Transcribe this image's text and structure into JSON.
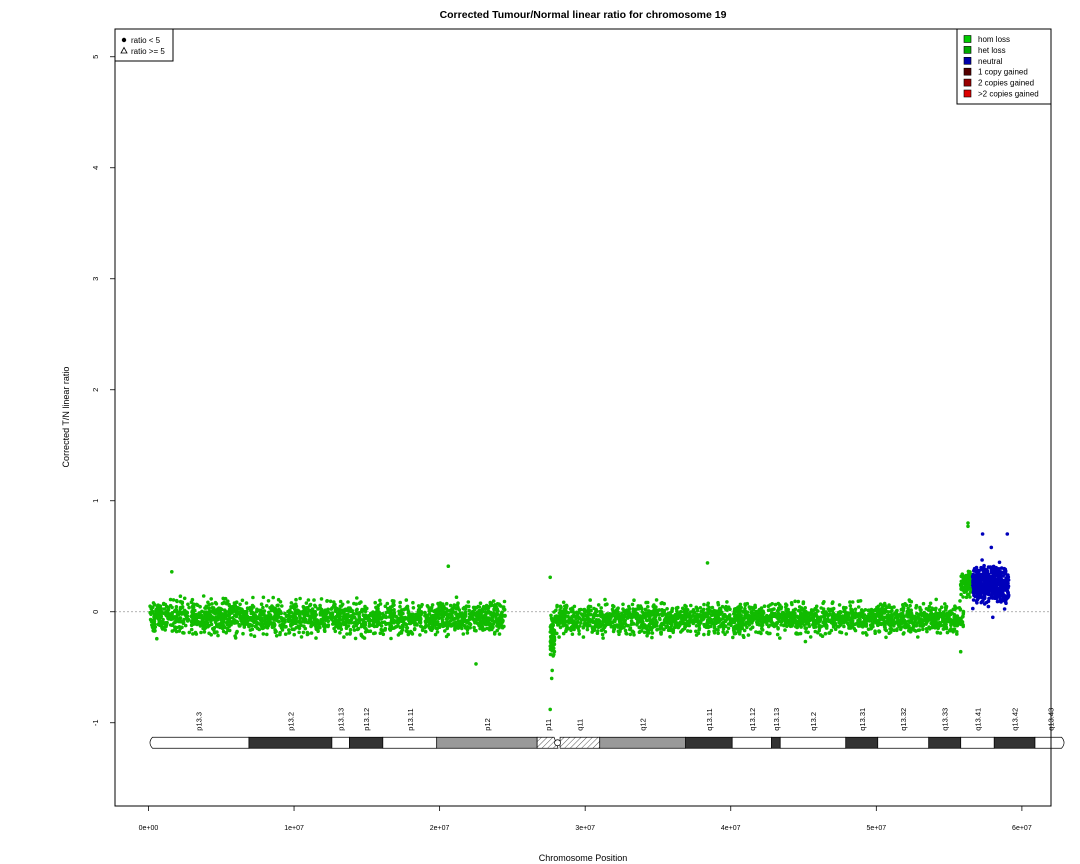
{
  "chart_data": {
    "type": "scatter",
    "title": "Corrected Tumour/Normal linear ratio for chromosome  19",
    "xlabel": "Chromosome Position",
    "ylabel": "Corrected T/N linear ratio",
    "xlim": [
      -2300000,
      62000000
    ],
    "ylim": [
      -1.75,
      5.25
    ],
    "x_ticks": [
      0,
      10000000,
      20000000,
      30000000,
      40000000,
      50000000,
      60000000
    ],
    "x_tick_labels": [
      "0e+00",
      "1e+07",
      "2e+07",
      "3e+07",
      "4e+07",
      "5e+07",
      "6e+07"
    ],
    "y_ticks": [
      -1,
      0,
      1,
      2,
      3,
      4,
      5
    ],
    "y_tick_labels": [
      "-1",
      "0",
      "1",
      "2",
      "3",
      "4",
      "5"
    ],
    "reference_line_y": 0,
    "shape_legend": {
      "position": "top-left",
      "items": [
        {
          "label": "ratio < 5",
          "marker": "filled-circle"
        },
        {
          "label": "ratio >= 5",
          "marker": "open-triangle"
        }
      ]
    },
    "color_legend": {
      "position": "top-right",
      "items": [
        {
          "label": "hom loss",
          "color": "#00cc00"
        },
        {
          "label": "het loss",
          "color": "#00aa00"
        },
        {
          "label": "neutral",
          "color": "#0000aa"
        },
        {
          "label": "1 copy gained",
          "color": "#550000"
        },
        {
          "label": "2 copies gained",
          "color": "#990000"
        },
        {
          "label": ">2 copies gained",
          "color": "#dd0000"
        }
      ]
    },
    "series": [
      {
        "name": "het loss",
        "color": "#11bb00",
        "segments": [
          {
            "x_start": 100000,
            "x_end": 24500000,
            "mean": -0.05,
            "spread": 0.13,
            "n": 1900
          },
          {
            "x_start": 27600000,
            "x_end": 27900000,
            "mean": -0.25,
            "spread": 0.18,
            "n": 80
          },
          {
            "x_start": 27900000,
            "x_end": 56000000,
            "mean": -0.06,
            "spread": 0.12,
            "n": 2200
          },
          {
            "x_start": 55800000,
            "x_end": 56600000,
            "mean": 0.25,
            "spread": 0.1,
            "n": 90
          }
        ],
        "outliers": [
          {
            "x": 1600000,
            "y": 0.36
          },
          {
            "x": 20600000,
            "y": 0.41
          },
          {
            "x": 22500000,
            "y": -0.47
          },
          {
            "x": 27600000,
            "y": 0.31
          },
          {
            "x": 27600000,
            "y": -0.88
          },
          {
            "x": 27700000,
            "y": -0.6
          },
          {
            "x": 38400000,
            "y": 0.44
          },
          {
            "x": 56300000,
            "y": 0.8
          },
          {
            "x": 56300000,
            "y": 0.77
          },
          {
            "x": 55800000,
            "y": -0.36
          }
        ]
      },
      {
        "name": "neutral",
        "color": "#0000bb",
        "segments": [
          {
            "x_start": 56600000,
            "x_end": 59100000,
            "mean": 0.25,
            "spread": 0.14,
            "n": 520
          }
        ],
        "outliers": [
          {
            "x": 57300000,
            "y": 0.7
          },
          {
            "x": 59000000,
            "y": 0.7
          },
          {
            "x": 57900000,
            "y": 0.58
          },
          {
            "x": 58000000,
            "y": -0.05
          }
        ]
      }
    ],
    "ideogram": {
      "y": -1.18,
      "centromere": 28000000,
      "bands": [
        {
          "name": "p13.3",
          "start": 0,
          "end": 6900000,
          "stain": "white"
        },
        {
          "name": "p13.2",
          "start": 6900000,
          "end": 12600000,
          "stain": "black"
        },
        {
          "name": "p13.13",
          "start": 12600000,
          "end": 13800000,
          "stain": "white"
        },
        {
          "name": "p13.12",
          "start": 13800000,
          "end": 16100000,
          "stain": "black"
        },
        {
          "name": "p13.11",
          "start": 16100000,
          "end": 19800000,
          "stain": "white"
        },
        {
          "name": "p12",
          "start": 19800000,
          "end": 26700000,
          "stain": "gray"
        },
        {
          "name": "p11",
          "start": 26700000,
          "end": 28200000,
          "stain": "hatched"
        },
        {
          "name": "q11",
          "start": 28200000,
          "end": 31000000,
          "stain": "hatched"
        },
        {
          "name": "q12",
          "start": 31000000,
          "end": 36900000,
          "stain": "gray"
        },
        {
          "name": "q13.11",
          "start": 36900000,
          "end": 40100000,
          "stain": "black"
        },
        {
          "name": "q13.12",
          "start": 40100000,
          "end": 42800000,
          "stain": "white"
        },
        {
          "name": "q13.13",
          "start": 42800000,
          "end": 43400000,
          "stain": "black"
        },
        {
          "name": "q13.2",
          "start": 43400000,
          "end": 47900000,
          "stain": "white"
        },
        {
          "name": "q13.31",
          "start": 47900000,
          "end": 50100000,
          "stain": "black"
        },
        {
          "name": "q13.32",
          "start": 50100000,
          "end": 53600000,
          "stain": "white"
        },
        {
          "name": "q13.33",
          "start": 53600000,
          "end": 55800000,
          "stain": "black"
        },
        {
          "name": "q13.41",
          "start": 55800000,
          "end": 58100000,
          "stain": "white"
        },
        {
          "name": "q13.42",
          "start": 58100000,
          "end": 60900000,
          "stain": "black"
        },
        {
          "name": "q13.43",
          "start": 60900000,
          "end": 63000000,
          "stain": "white"
        }
      ]
    }
  }
}
